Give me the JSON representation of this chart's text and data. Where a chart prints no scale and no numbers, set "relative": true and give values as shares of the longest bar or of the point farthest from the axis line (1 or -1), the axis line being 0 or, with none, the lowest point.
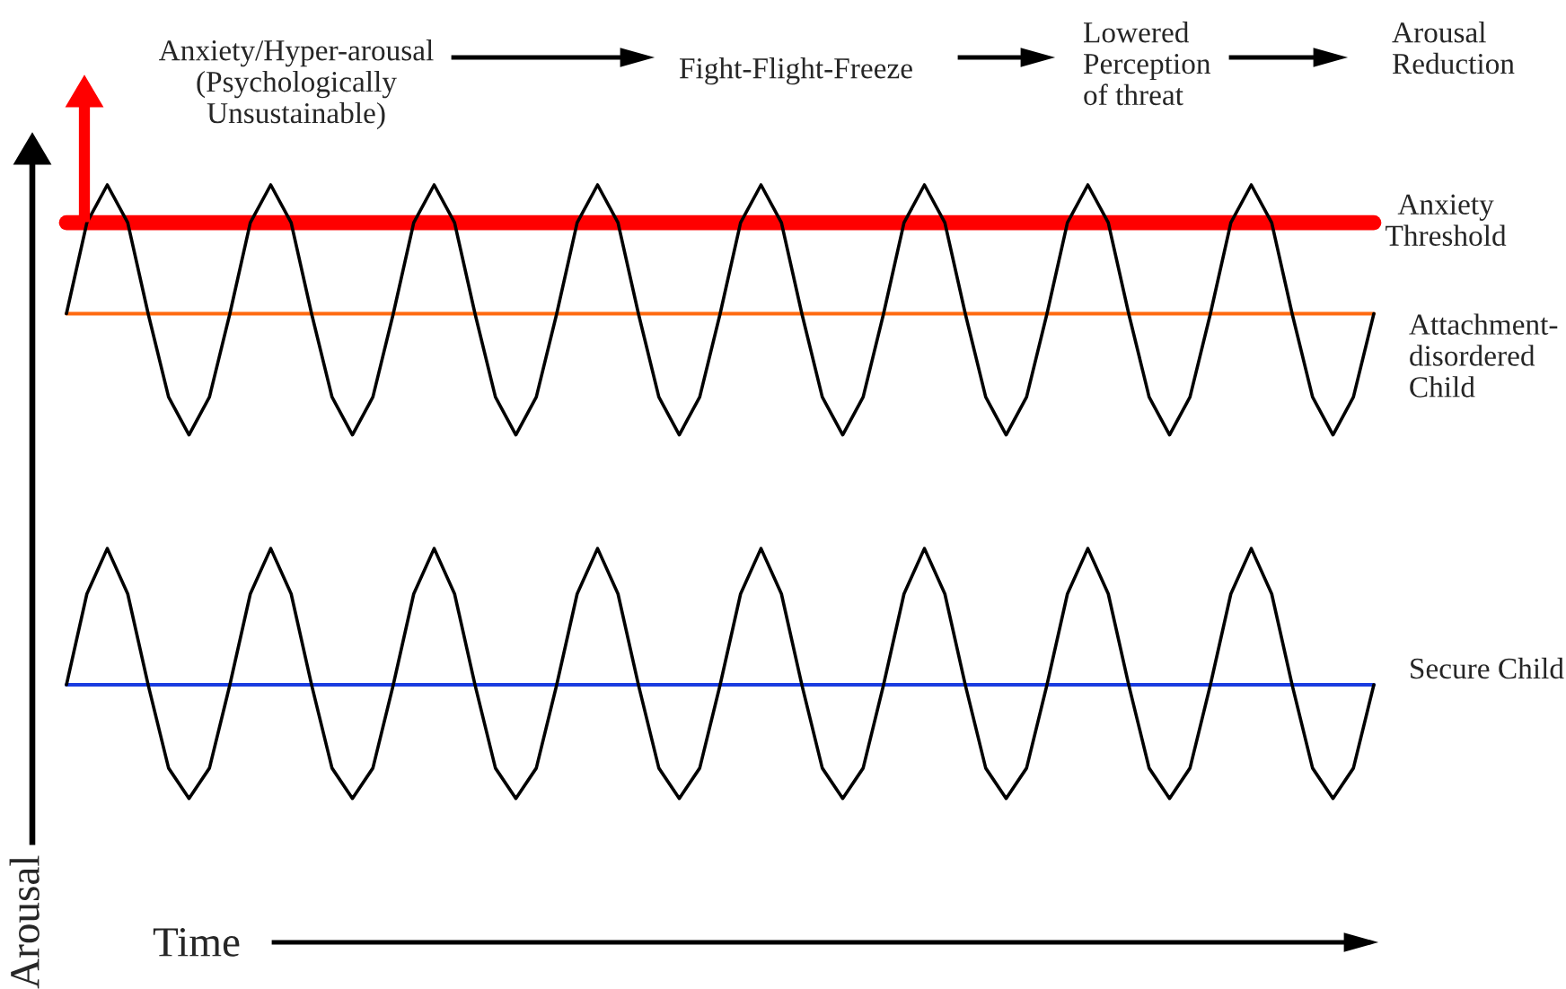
{
  "chart_data": {
    "type": "line",
    "relative": true,
    "xlabel": "Time",
    "ylabel": "Arousal",
    "categories": [
      null,
      null,
      null,
      null,
      null,
      null,
      null,
      null,
      null,
      null,
      null,
      null,
      null,
      null,
      null,
      null,
      null,
      null,
      null,
      null,
      null,
      null,
      null,
      null,
      null,
      null,
      null,
      null,
      null,
      null,
      null,
      null,
      null,
      null,
      null,
      null,
      null,
      null,
      null,
      null,
      null,
      null,
      null,
      null,
      null,
      null,
      null,
      null,
      null,
      null,
      null,
      null,
      null,
      null,
      null,
      null,
      null,
      null,
      null,
      null,
      null,
      null,
      null,
      null,
      null
    ],
    "series": [
      {
        "name": "Attachment-\ndisordered\nChild",
        "color": "#000000",
        "values": [
          0.83,
          0.95,
          1,
          0.95,
          0.83,
          0.72,
          0.67,
          0.72,
          0.83,
          0.95,
          1,
          0.95,
          0.83,
          0.72,
          0.67,
          0.72,
          0.83,
          0.95,
          1,
          0.95,
          0.83,
          0.72,
          0.67,
          0.72,
          0.83,
          0.95,
          1,
          0.95,
          0.83,
          0.72,
          0.67,
          0.72,
          0.83,
          0.95,
          1,
          0.95,
          0.83,
          0.72,
          0.67,
          0.72,
          0.83,
          0.95,
          1,
          0.95,
          0.83,
          0.72,
          0.67,
          0.72,
          0.83,
          0.95,
          1,
          0.95,
          0.83,
          0.72,
          0.67,
          0.72,
          0.83,
          0.95,
          1,
          0.95,
          0.83,
          0.72,
          0.67,
          0.72,
          0.83
        ]
      },
      {
        "name": "Secure Child",
        "color": "#000000",
        "values": [
          0.34,
          0.46,
          0.52,
          0.46,
          0.34,
          0.23,
          0.19,
          0.23,
          0.34,
          0.46,
          0.52,
          0.46,
          0.34,
          0.23,
          0.19,
          0.23,
          0.34,
          0.46,
          0.52,
          0.46,
          0.34,
          0.23,
          0.19,
          0.23,
          0.34,
          0.46,
          0.52,
          0.46,
          0.34,
          0.23,
          0.19,
          0.23,
          0.34,
          0.46,
          0.52,
          0.46,
          0.34,
          0.23,
          0.19,
          0.23,
          0.34,
          0.46,
          0.52,
          0.46,
          0.34,
          0.23,
          0.19,
          0.23,
          0.34,
          0.46,
          0.52,
          0.46,
          0.34,
          0.23,
          0.19,
          0.23,
          0.34,
          0.46,
          0.52,
          0.46,
          0.34,
          0.23,
          0.19,
          0.23,
          0.34
        ]
      }
    ],
    "ref_lines": [
      {
        "axis": "y",
        "value": 0.95,
        "label": "Anxiety\nThreshold",
        "color": "#ff0000"
      },
      {
        "axis": "y",
        "value": 0.83,
        "color": "#ff6a10"
      },
      {
        "axis": "y",
        "value": 0.34,
        "color": "#1a3ce0"
      }
    ],
    "annotations": [
      "Anxiety/Hyper-arousal\n(Psychologically\nUnsustainable)",
      "Fight-Flight-Freeze",
      "Lowered\nPerception\nof threat",
      "Arousal\nReduction"
    ],
    "line_style": "solid",
    "grid": false,
    "legend": false
  }
}
